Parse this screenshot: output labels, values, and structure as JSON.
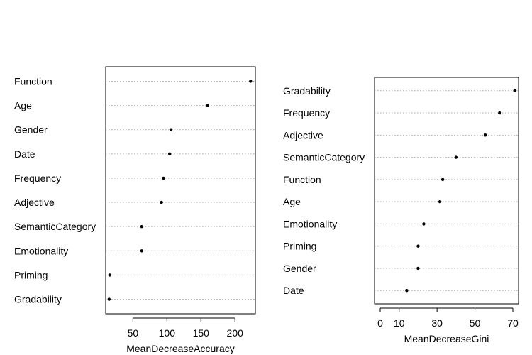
{
  "chart_data": [
    {
      "type": "scatter",
      "variant": "dotchart",
      "title": "",
      "xlabel": "MeanDecreaseAccuracy",
      "ylabel": "",
      "grid": "dotted horizontal guide lines",
      "xlim": [
        10,
        230
      ],
      "xticks": [
        50,
        100,
        150,
        200
      ],
      "categories": [
        "Function",
        "Age",
        "Gender",
        "Date",
        "Frequency",
        "Adjective",
        "SemanticCategory",
        "Emotionality",
        "Priming",
        "Gradability"
      ],
      "values": [
        223,
        160,
        106,
        104,
        95,
        92,
        63,
        63,
        16,
        15
      ]
    },
    {
      "type": "scatter",
      "variant": "dotchart",
      "title": "",
      "xlabel": "MeanDecreaseGini",
      "ylabel": "",
      "grid": "dotted horizontal guide lines",
      "xlim": [
        -3,
        73
      ],
      "xticks": [
        0,
        10,
        30,
        50,
        70
      ],
      "categories": [
        "Gradability",
        "Frequency",
        "Adjective",
        "SemanticCategory",
        "Function",
        "Age",
        "Emotionality",
        "Priming",
        "Gender",
        "Date"
      ],
      "values": [
        71,
        63,
        55.5,
        40,
        33,
        31.5,
        23,
        20,
        20,
        14
      ]
    }
  ]
}
